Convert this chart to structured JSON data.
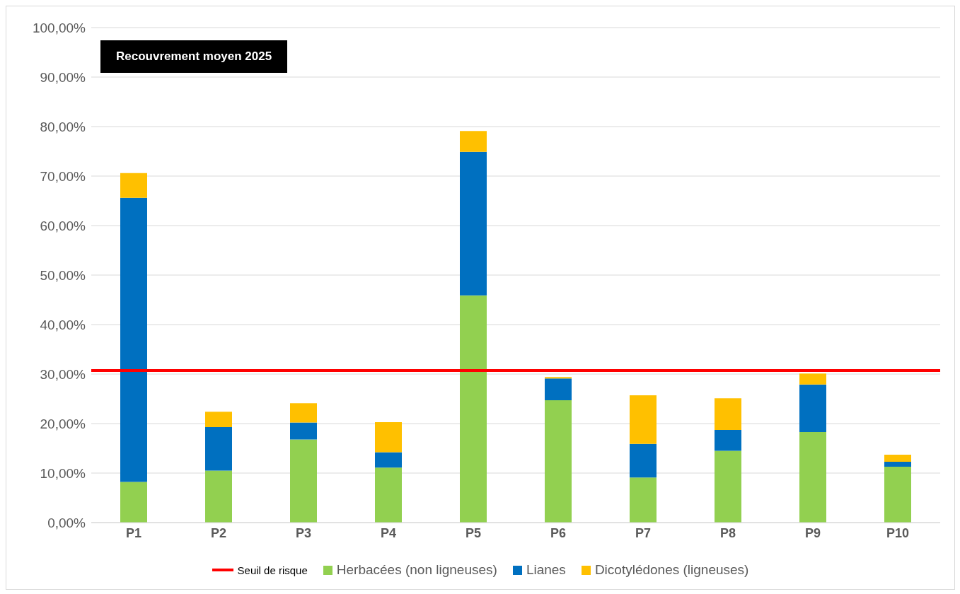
{
  "chart_data": {
    "type": "bar",
    "title": "Recouvrement moyen 2025",
    "stacked": true,
    "categories": [
      "P1",
      "P2",
      "P3",
      "P4",
      "P5",
      "P6",
      "P7",
      "P8",
      "P9",
      "P10"
    ],
    "series": [
      {
        "name": "Herbacées (non ligneuses)",
        "color": "#92d050",
        "values": [
          8.2,
          10.5,
          16.8,
          11.1,
          45.9,
          24.7,
          9.1,
          14.5,
          18.3,
          11.3
        ]
      },
      {
        "name": "Lianes",
        "color": "#0070c0",
        "values": [
          57.4,
          8.8,
          3.4,
          3.1,
          29.0,
          4.4,
          6.8,
          4.2,
          9.6,
          1.0
        ]
      },
      {
        "name": "Dicotylédones (ligneuses)",
        "color": "#ffc000",
        "values": [
          5.0,
          3.1,
          3.9,
          6.1,
          4.2,
          0.3,
          9.8,
          6.4,
          2.2,
          1.4
        ]
      }
    ],
    "ylim": [
      0,
      100
    ],
    "yticks": [
      {
        "value": 0,
        "label": "0,00%"
      },
      {
        "value": 10,
        "label": "10,00%"
      },
      {
        "value": 20,
        "label": "20,00%"
      },
      {
        "value": 30,
        "label": "30,00%"
      },
      {
        "value": 40,
        "label": "40,00%"
      },
      {
        "value": 50,
        "label": "50,00%"
      },
      {
        "value": 60,
        "label": "60,00%"
      },
      {
        "value": 70,
        "label": "70,00%"
      },
      {
        "value": 80,
        "label": "80,00%"
      },
      {
        "value": 90,
        "label": "90,00%"
      },
      {
        "value": 100,
        "label": "100,00%"
      }
    ],
    "ref_lines": [
      {
        "axis": "y",
        "value": 30.7,
        "label": "Seuil de risque",
        "color": "#ff0000"
      }
    ],
    "grid": "y",
    "legend": "bottom"
  }
}
